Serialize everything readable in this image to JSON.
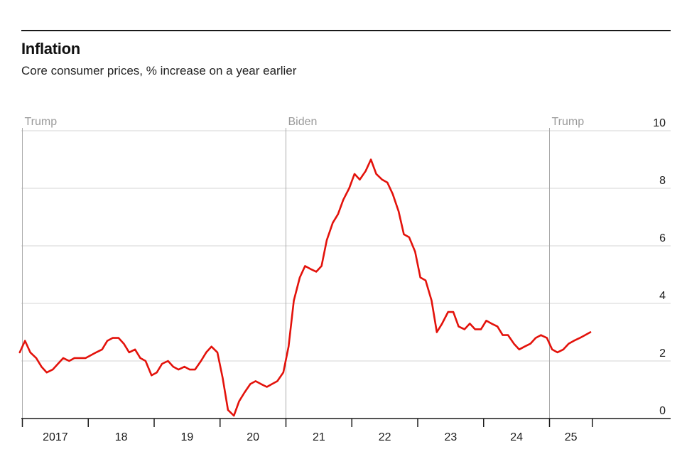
{
  "header": {
    "title": "Inflation",
    "subtitle": "Core consumer prices, % increase on a year earlier"
  },
  "chart_data": {
    "type": "line",
    "title": "Inflation",
    "subtitle": "Core consumer prices, % increase on a year earlier",
    "xlabel": "",
    "ylabel": "",
    "ylim": [
      0,
      10
    ],
    "y_ticks": [
      0,
      2,
      4,
      6,
      8,
      10
    ],
    "y_axis_side": "right",
    "grid": true,
    "x_year_labels": [
      {
        "label": "2017",
        "year": 2017
      },
      {
        "label": "18",
        "year": 2018
      },
      {
        "label": "19",
        "year": 2019
      },
      {
        "label": "20",
        "year": 2020
      },
      {
        "label": "21",
        "year": 2021
      },
      {
        "label": "22",
        "year": 2022
      },
      {
        "label": "23",
        "year": 2023
      },
      {
        "label": "24",
        "year": 2024
      },
      {
        "label": "25",
        "year": 2025
      }
    ],
    "annotations": [
      {
        "label": "Trump",
        "date": 2017.0
      },
      {
        "label": "Biden",
        "date": 2021.0
      },
      {
        "label": "Trump",
        "date": 2025.0
      }
    ],
    "colors": {
      "series": "#e3120b",
      "grid": "#d4d4d4",
      "annotation": "#9a9a9a",
      "axis": "#1a1a1a"
    },
    "series": [
      {
        "name": "Core consumer prices",
        "x": [
          2016.96,
          2017.04,
          2017.12,
          2017.21,
          2017.29,
          2017.37,
          2017.46,
          2017.54,
          2017.62,
          2017.71,
          2017.79,
          2017.87,
          2017.96,
          2018.04,
          2018.12,
          2018.21,
          2018.29,
          2018.37,
          2018.46,
          2018.54,
          2018.62,
          2018.71,
          2018.79,
          2018.87,
          2018.96,
          2019.04,
          2019.12,
          2019.21,
          2019.29,
          2019.37,
          2019.46,
          2019.54,
          2019.62,
          2019.71,
          2019.79,
          2019.87,
          2019.96,
          2020.04,
          2020.12,
          2020.21,
          2020.29,
          2020.37,
          2020.46,
          2020.54,
          2020.62,
          2020.71,
          2020.79,
          2020.87,
          2020.96,
          2021.04,
          2021.12,
          2021.21,
          2021.29,
          2021.37,
          2021.46,
          2021.54,
          2021.62,
          2021.71,
          2021.79,
          2021.87,
          2021.96,
          2022.04,
          2022.12,
          2022.21,
          2022.29,
          2022.37,
          2022.46,
          2022.54,
          2022.62,
          2022.71,
          2022.79,
          2022.87,
          2022.96,
          2023.04,
          2023.12,
          2023.21,
          2023.29,
          2023.37,
          2023.46,
          2023.54,
          2023.62,
          2023.71,
          2023.79,
          2023.87,
          2023.96,
          2024.04,
          2024.12,
          2024.21,
          2024.29,
          2024.37,
          2024.46,
          2024.54,
          2024.62,
          2024.71,
          2024.79,
          2024.87,
          2024.96,
          2025.04,
          2025.12,
          2025.21,
          2025.29,
          2025.37,
          2025.46,
          2025.54,
          2025.62
        ],
        "values": [
          2.3,
          2.7,
          2.3,
          2.1,
          1.8,
          1.6,
          1.7,
          1.9,
          2.1,
          2.0,
          2.1,
          2.1,
          2.1,
          2.2,
          2.3,
          2.4,
          2.7,
          2.8,
          2.8,
          2.6,
          2.3,
          2.4,
          2.1,
          2.0,
          1.5,
          1.6,
          1.9,
          2.0,
          1.8,
          1.7,
          1.8,
          1.7,
          1.7,
          2.0,
          2.3,
          2.5,
          2.3,
          1.4,
          0.3,
          0.1,
          0.6,
          0.9,
          1.2,
          1.3,
          1.2,
          1.1,
          1.2,
          1.3,
          1.6,
          2.5,
          4.1,
          4.9,
          5.3,
          5.2,
          5.1,
          5.3,
          6.2,
          6.8,
          7.1,
          7.6,
          8.0,
          8.5,
          8.3,
          8.6,
          9.0,
          8.5,
          8.3,
          8.2,
          7.8,
          7.2,
          6.4,
          6.3,
          5.8,
          4.9,
          4.8,
          4.1,
          3.0,
          3.3,
          3.7,
          3.7,
          3.2,
          3.1,
          3.3,
          3.1,
          3.1,
          3.4,
          3.3,
          3.2,
          2.9,
          2.9,
          2.6,
          2.4,
          2.5,
          2.6,
          2.8,
          2.9,
          2.8,
          2.4,
          2.3,
          2.4,
          2.6,
          2.7,
          2.8,
          2.9,
          3.0
        ]
      }
    ]
  }
}
